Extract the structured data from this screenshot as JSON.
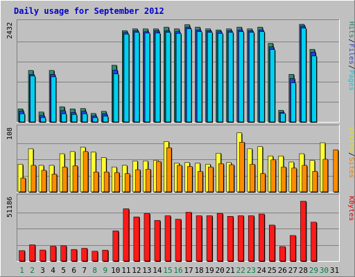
{
  "chart_data": {
    "type": "bar",
    "title": "Daily usage for September 2012",
    "categories": [
      "1",
      "2",
      "3",
      "4",
      "5",
      "6",
      "7",
      "8",
      "9",
      "10",
      "11",
      "12",
      "13",
      "14",
      "15",
      "16",
      "17",
      "18",
      "19",
      "20",
      "21",
      "22",
      "23",
      "24",
      "25",
      "26",
      "27",
      "28",
      "29",
      "30",
      "31"
    ],
    "weekend_days": [
      "1",
      "2",
      "8",
      "9",
      "15",
      "16",
      "22",
      "23",
      "29",
      "30"
    ],
    "panels": [
      {
        "id": "hits-files-pages",
        "ytick_label": "2432",
        "ylim": [
          0,
          2850
        ],
        "legend": [
          {
            "text": "Pages",
            "color": "#00c8e8"
          },
          {
            "text": "Files",
            "color": "#2840e0"
          },
          {
            "text": "Hits",
            "color": "#20806a"
          }
        ],
        "series": [
          {
            "name": "Hits",
            "color": "#2e8b6e",
            "values": [
              370,
              1460,
              280,
              1460,
              430,
              370,
              380,
              240,
              300,
              1610,
              2590,
              2640,
              2640,
              2640,
              2690,
              2640,
              2760,
              2690,
              2640,
              2610,
              2640,
              2690,
              2640,
              2690,
              2230,
              330,
              1350,
              2770,
              2060,
              0,
              0
            ]
          },
          {
            "name": "Files",
            "color": "#2040e0",
            "values": [
              310,
              1350,
              180,
              1350,
              320,
              270,
              300,
              170,
              230,
              1470,
              2540,
              2590,
              2560,
              2590,
              2590,
              2560,
              2690,
              2610,
              2590,
              2560,
              2590,
              2610,
              2590,
              2610,
              2130,
              270,
              1230,
              2720,
              1980,
              0,
              0
            ]
          },
          {
            "name": "Pages",
            "color": "#00d0f0",
            "values": [
              230,
              1300,
              120,
              1280,
              230,
              210,
              230,
              120,
              160,
              1360,
              2490,
              2540,
              2520,
              2520,
              2540,
              2510,
              2640,
              2560,
              2540,
              2510,
              2540,
              2560,
              2540,
              2560,
              2050,
              240,
              1110,
              2660,
              1870,
              0,
              0
            ]
          }
        ]
      },
      {
        "id": "visits-sites",
        "ytick_label": "108",
        "ylim": [
          0,
          118
        ],
        "legend": [
          {
            "text": "Sites",
            "color": "#f08000"
          },
          {
            "text": "Visits",
            "color": "#e8e000"
          },
          {
            "text": "/",
            "color": "#000000"
          }
        ],
        "series": [
          {
            "name": "Visits",
            "color": "#ffff33",
            "values": [
              50,
              78,
              48,
              48,
              69,
              73,
              81,
              72,
              62,
              45,
              48,
              56,
              56,
              57,
              91,
              52,
              53,
              52,
              50,
              70,
              53,
              107,
              78,
              82,
              65,
              65,
              54,
              69,
              57,
              89,
              0
            ]
          },
          {
            "name": "Sites",
            "color": "#ff8c00",
            "values": [
              25,
              48,
              39,
              32,
              45,
              47,
              73,
              36,
              36,
              35,
              33,
              40,
              41,
              55,
              80,
              48,
              46,
              37,
              45,
              51,
              49,
              90,
              50,
              33,
              58,
              45,
              43,
              48,
              37,
              59,
              76
            ]
          }
        ]
      },
      {
        "id": "kbytes",
        "ytick_label": "51186",
        "ylim": [
          0,
          56000
        ],
        "legend": [
          {
            "text": "KBytes",
            "color": "#e00000"
          }
        ],
        "series": [
          {
            "name": "KBytes",
            "color": "#ff1a1a",
            "values": [
              9000,
              14000,
              9500,
              12800,
              13200,
              10000,
              11000,
              8500,
              9400,
              26000,
              45000,
              38000,
              41000,
              35000,
              39000,
              36000,
              42000,
              39000,
              39000,
              41000,
              38500,
              39000,
              39000,
              40500,
              31000,
              12500,
              22000,
              51500,
              33500,
              0,
              0
            ]
          }
        ]
      }
    ]
  }
}
